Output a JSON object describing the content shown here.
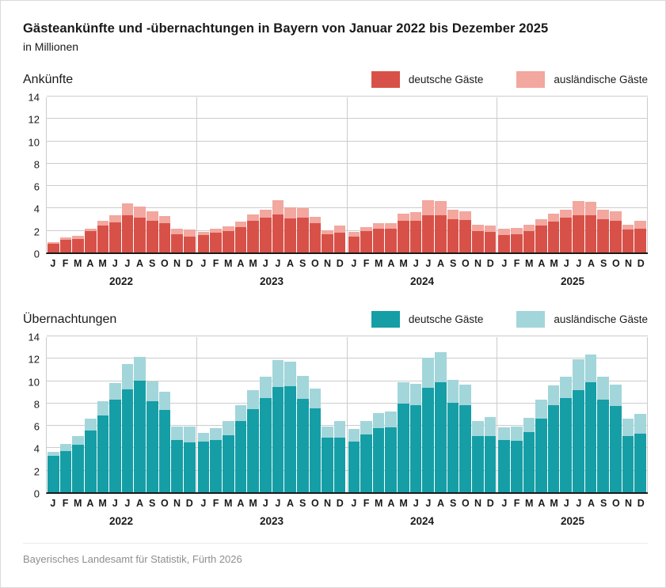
{
  "title": "Gästeankünfte und -übernachtungen in Bayern von Januar 2022 bis Dezember 2025",
  "subtitle": "in Millionen",
  "footer": "Bayerisches Landesamt für Statistik, Fürth 2026",
  "legend": {
    "domestic": "deutsche Gäste",
    "foreign": "ausländische Gäste"
  },
  "month_letters": [
    "J",
    "F",
    "M",
    "A",
    "M",
    "J",
    "J",
    "A",
    "S",
    "O",
    "N",
    "D"
  ],
  "years": [
    "2022",
    "2023",
    "2024",
    "2025"
  ],
  "y_axis": {
    "min": 0,
    "max": 14,
    "step": 2
  },
  "colors": {
    "arrivals_domestic": "#d85149",
    "arrivals_foreign": "#f2a79f",
    "stays_domestic": "#159ea6",
    "stays_foreign": "#a2d6da",
    "axis_line": "#1a1a1a",
    "gridline": "#cccccc",
    "footer_text": "#8e8e8e"
  },
  "chart_data": [
    {
      "type": "bar",
      "stacked": true,
      "title": "Ankünfte",
      "ylabel": "in Millionen",
      "ylim": [
        0,
        14
      ],
      "grid": true,
      "legend_position": "top-right",
      "categories_note": "48 months, Jan 2022 - Dec 2025",
      "series": [
        {
          "name": "deutsche Gäste",
          "color": "#d85149",
          "values": [
            0.75,
            1.1,
            1.2,
            1.9,
            2.4,
            2.7,
            3.3,
            3.1,
            2.8,
            2.6,
            1.6,
            1.45,
            1.55,
            1.8,
            1.9,
            2.3,
            2.8,
            3.1,
            3.4,
            3.05,
            3.15,
            2.6,
            1.6,
            1.8,
            1.45,
            1.9,
            2.1,
            2.15,
            2.85,
            2.8,
            3.35,
            3.3,
            3.0,
            2.9,
            1.9,
            1.85,
            1.55,
            1.6,
            1.9,
            2.4,
            2.75,
            3.1,
            3.3,
            3.3,
            3.0,
            2.8,
            2.05,
            2.1
          ]
        },
        {
          "name": "ausländische Gäste",
          "color": "#f2a79f",
          "values": [
            0.15,
            0.25,
            0.3,
            0.25,
            0.45,
            0.6,
            1.1,
            1.0,
            0.85,
            0.65,
            0.5,
            0.6,
            0.3,
            0.3,
            0.4,
            0.45,
            0.6,
            0.7,
            1.25,
            1.0,
            0.8,
            0.6,
            0.4,
            0.6,
            0.4,
            0.35,
            0.5,
            0.45,
            0.65,
            0.8,
            1.35,
            1.3,
            0.8,
            0.8,
            0.55,
            0.55,
            0.55,
            0.6,
            0.6,
            0.6,
            0.7,
            0.7,
            1.3,
            1.2,
            0.85,
            0.85,
            0.45,
            0.7
          ]
        }
      ]
    },
    {
      "type": "bar",
      "stacked": true,
      "title": "Übernachtungen",
      "ylabel": "in Millionen",
      "ylim": [
        0,
        14
      ],
      "grid": true,
      "legend_position": "top-right",
      "categories_note": "48 months, Jan 2022 - Dec 2025",
      "series": [
        {
          "name": "deutsche Gäste",
          "color": "#159ea6",
          "values": [
            3.25,
            3.7,
            4.25,
            5.55,
            6.85,
            8.25,
            9.2,
            9.95,
            8.15,
            7.35,
            4.7,
            4.45,
            4.55,
            4.65,
            5.1,
            6.35,
            7.45,
            8.45,
            9.4,
            9.45,
            8.35,
            7.5,
            4.85,
            4.9,
            4.5,
            5.15,
            5.75,
            5.8,
            7.95,
            7.75,
            9.35,
            9.85,
            8.0,
            7.75,
            5.05,
            5.05,
            4.65,
            4.6,
            5.35,
            6.6,
            7.75,
            8.45,
            9.15,
            9.8,
            8.3,
            7.7,
            5.0,
            5.25
          ]
        },
        {
          "name": "ausländische Gäste",
          "color": "#a2d6da",
          "values": [
            0.35,
            0.6,
            0.75,
            1.05,
            1.25,
            1.5,
            2.25,
            2.15,
            1.75,
            1.65,
            1.15,
            1.4,
            0.75,
            1.1,
            1.25,
            1.45,
            1.7,
            1.9,
            2.4,
            2.2,
            2.05,
            1.75,
            1.05,
            1.45,
            1.15,
            1.2,
            1.35,
            1.4,
            1.9,
            1.95,
            2.65,
            2.65,
            2.05,
            1.85,
            1.3,
            1.65,
            1.15,
            1.3,
            1.3,
            1.7,
            1.8,
            1.9,
            2.7,
            2.5,
            2.0,
            1.9,
            1.55,
            1.75
          ]
        }
      ]
    }
  ]
}
